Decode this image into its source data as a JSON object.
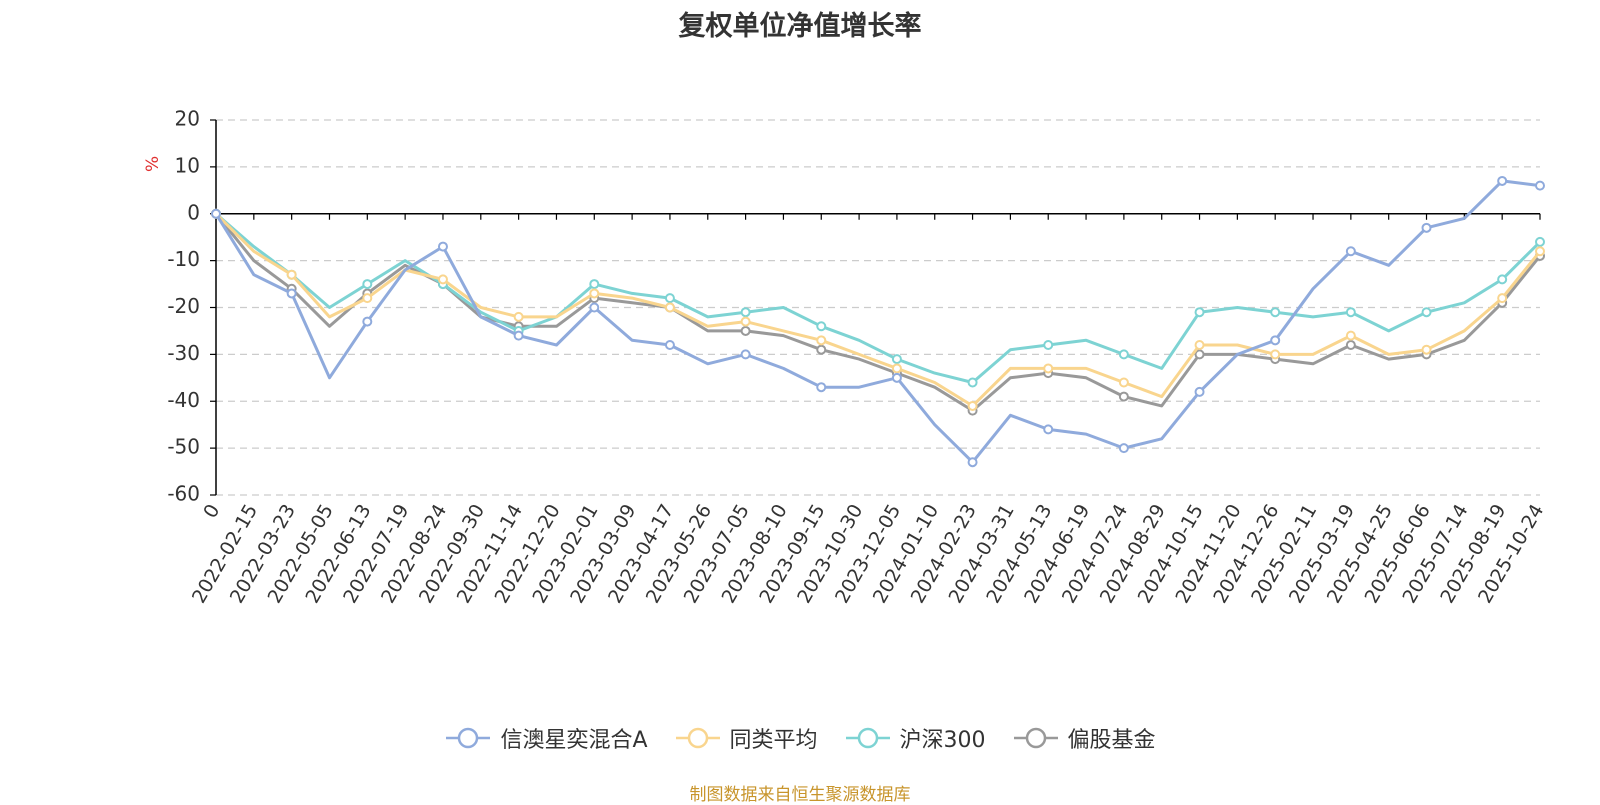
{
  "chart_data": {
    "type": "line",
    "title": "复权单位净值增长率",
    "ylabel": "%",
    "ylim": [
      -60,
      20
    ],
    "yticks": [
      20,
      10,
      0,
      -10,
      -20,
      -30,
      -40,
      -50,
      -60
    ],
    "xlabel": "",
    "categories": [
      "0",
      "2022-02-15",
      "2022-03-23",
      "2022-05-05",
      "2022-06-13",
      "2022-07-19",
      "2022-08-24",
      "2022-09-30",
      "2022-11-14",
      "2022-12-20",
      "2023-02-01",
      "2023-03-09",
      "2023-04-17",
      "2023-05-26",
      "2023-07-05",
      "2023-08-10",
      "2023-09-15",
      "2023-10-30",
      "2023-12-05",
      "2024-01-10",
      "2024-02-23",
      "2024-03-31",
      "2024-05-13",
      "2024-06-19",
      "2024-07-24",
      "2024-08-29",
      "2024-10-15",
      "2024-11-20",
      "2024-12-26",
      "2025-02-11",
      "2025-03-19",
      "2025-04-25",
      "2025-06-06",
      "2025-07-14",
      "2025-08-19",
      "2025-10-24"
    ],
    "series": [
      {
        "name": "信澳星奕混合A",
        "color": "#8FAADC",
        "values": [
          0,
          -13,
          -17,
          -35,
          -23,
          -12,
          -7,
          -22,
          -26,
          -28,
          -20,
          -27,
          -28,
          -32,
          -30,
          -33,
          -37,
          -37,
          -35,
          -45,
          -53,
          -43,
          -46,
          -47,
          -50,
          -48,
          -38,
          -30,
          -27,
          -16,
          -8,
          -11,
          -3,
          -1,
          7,
          6
        ]
      },
      {
        "name": "同类平均",
        "color": "#F9D58E",
        "values": [
          0,
          -8,
          -13,
          -22,
          -18,
          -12,
          -14,
          -20,
          -22,
          -22,
          -17,
          -18,
          -20,
          -24,
          -23,
          -25,
          -27,
          -30,
          -33,
          -36,
          -41,
          -33,
          -33,
          -33,
          -36,
          -39,
          -28,
          -28,
          -30,
          -30,
          -26,
          -30,
          -29,
          -25,
          -18,
          -8
        ]
      },
      {
        "name": "沪深300",
        "color": "#7DD3D3",
        "values": [
          0,
          -7,
          -13,
          -20,
          -15,
          -10,
          -15,
          -21,
          -25,
          -22,
          -15,
          -17,
          -18,
          -22,
          -21,
          -20,
          -24,
          -27,
          -31,
          -34,
          -36,
          -29,
          -28,
          -27,
          -30,
          -33,
          -21,
          -20,
          -21,
          -22,
          -21,
          -25,
          -21,
          -19,
          -14,
          -6
        ]
      },
      {
        "name": "偏股基金",
        "color": "#999999",
        "values": [
          0,
          -10,
          -16,
          -24,
          -17,
          -11,
          -15,
          -22,
          -24,
          -24,
          -18,
          -19,
          -20,
          -25,
          -25,
          -26,
          -29,
          -31,
          -34,
          -37,
          -42,
          -35,
          -34,
          -35,
          -39,
          -41,
          -30,
          -30,
          -31,
          -32,
          -28,
          -31,
          -30,
          -27,
          -19,
          -9
        ]
      }
    ],
    "legend_position": "bottom",
    "grid": true
  },
  "source_text": "制图数据来自恒生聚源数据库",
  "colors": {
    "title": "#333333",
    "axis": "#000000",
    "grid": "#cccccc",
    "unit": "#e03030",
    "source": "#c8952c"
  }
}
